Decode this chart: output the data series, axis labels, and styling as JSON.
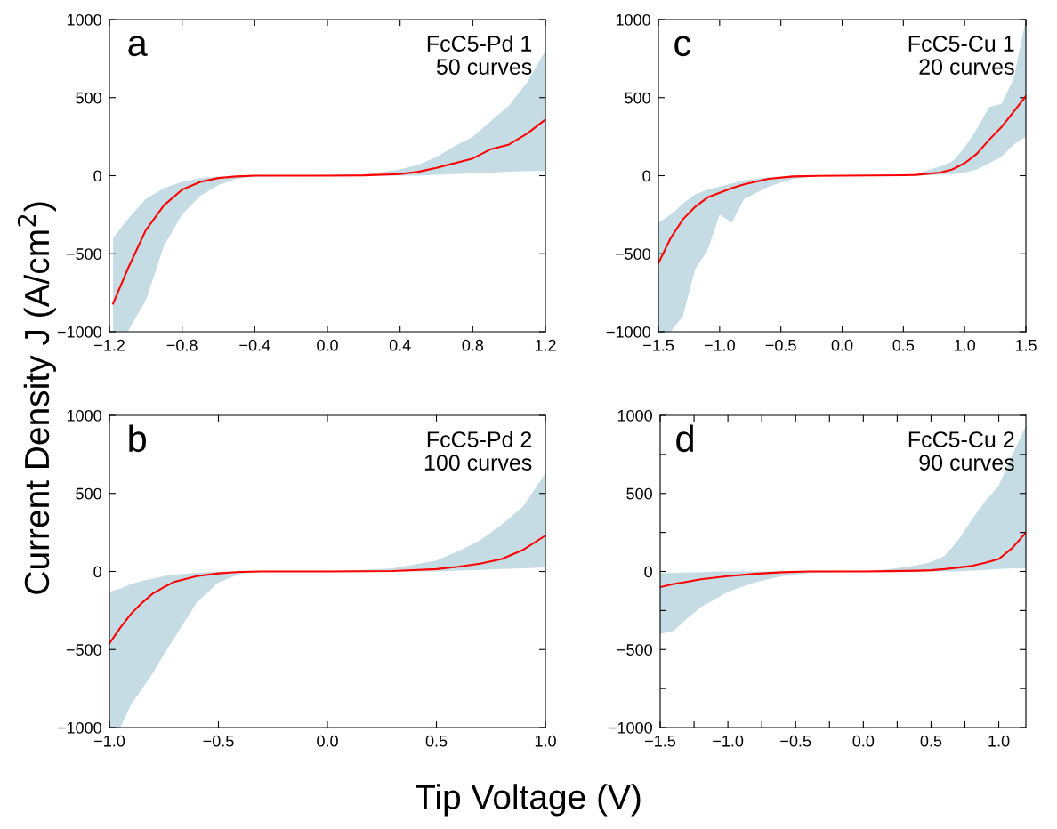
{
  "chart_data": [
    {
      "type": "line",
      "ylabel": "Current Density J (A/cm$^{2}$)",
      "xlabel": "Tip Voltage (V)",
      "annotations": [
        "a",
        "FcC5-Pd 1\n50 curves"
      ],
      "xlim": [
        -1.2,
        1.2
      ],
      "ylim": [
        -1000,
        1000
      ],
      "xticks": [
        {
          "value": -1.2,
          "label": "−1.2"
        },
        {
          "value": -0.8,
          "label": "−0.8"
        },
        {
          "value": -0.4,
          "label": "−0.4"
        },
        {
          "value": 0,
          "label": "0.0"
        },
        {
          "value": 0.4,
          "label": "0.4"
        },
        {
          "value": 0.8,
          "label": "0.8"
        },
        {
          "value": 1.2,
          "label": "1.2"
        }
      ],
      "yticks": [
        {
          "value": -1000,
          "label": "−1000"
        },
        {
          "value": -500,
          "label": "−500"
        },
        0,
        500,
        1000
      ],
      "series": [
        {
          "color": "#ff0000",
          "x": [
            -1.18,
            -1.1,
            -1.0,
            -0.9,
            -0.8,
            -0.7,
            -0.6,
            -0.5,
            -0.4,
            0,
            0.2,
            0.4,
            0.5,
            0.6,
            0.7,
            0.8,
            0.9,
            1.0,
            1.1,
            1.2
          ],
          "values": [
            -820,
            -600,
            -350,
            -190,
            -90,
            -40,
            -15,
            -5,
            0,
            0,
            2,
            10,
            25,
            50,
            80,
            110,
            170,
            200,
            270,
            360
          ],
          "lower": [
            -1000,
            -1000,
            -800,
            -450,
            -250,
            -130,
            -60,
            -20,
            -5,
            0,
            0,
            0,
            0,
            5,
            10,
            15,
            20,
            25,
            30,
            30
          ],
          "upper": [
            -400,
            -280,
            -150,
            -80,
            -40,
            -15,
            -5,
            0,
            0,
            0,
            5,
            40,
            70,
            120,
            190,
            250,
            350,
            450,
            600,
            800
          ]
        }
      ]
    },
    {
      "type": "line",
      "annotations": [
        "c",
        "FcC5-Cu 1\n20 curves"
      ],
      "xlim": [
        -1.5,
        1.5
      ],
      "ylim": [
        -1000,
        1000
      ],
      "xticks": [
        {
          "value": -1.5,
          "label": "−1.5"
        },
        {
          "value": -1.0,
          "label": "−1.0"
        },
        {
          "value": -0.5,
          "label": "−0.5"
        },
        {
          "value": 0,
          "label": "0.0"
        },
        {
          "value": 0.5,
          "label": "0.5"
        },
        {
          "value": 1.0,
          "label": "1.0"
        },
        {
          "value": 1.5,
          "label": "1.5"
        }
      ],
      "yticks": [
        {
          "value": -1000,
          "label": "−1000"
        },
        {
          "value": -500,
          "label": "−500"
        },
        0,
        500,
        1000
      ],
      "series": [
        {
          "color": "#ff0000",
          "x": [
            -1.5,
            -1.4,
            -1.3,
            -1.2,
            -1.1,
            -1.0,
            -0.9,
            -0.8,
            -0.6,
            -0.4,
            -0.2,
            0,
            0.5,
            0.6,
            0.8,
            0.9,
            1.0,
            1.1,
            1.2,
            1.3,
            1.4,
            1.5
          ],
          "values": [
            -560,
            -400,
            -280,
            -200,
            -140,
            -110,
            -80,
            -55,
            -20,
            -5,
            -1,
            0,
            3,
            5,
            20,
            40,
            80,
            140,
            230,
            310,
            410,
            510
          ],
          "lower": [
            -1000,
            -1000,
            -900,
            -600,
            -480,
            -250,
            -300,
            -150,
            -70,
            -20,
            -3,
            0,
            0,
            0,
            5,
            10,
            20,
            40,
            80,
            120,
            200,
            250
          ],
          "upper": [
            -300,
            -250,
            -180,
            -120,
            -90,
            -70,
            -50,
            -30,
            -10,
            0,
            0,
            0,
            5,
            10,
            60,
            90,
            180,
            300,
            440,
            460,
            620,
            1000
          ]
        }
      ]
    },
    {
      "type": "line",
      "annotations": [
        "b",
        "FcC5-Pd 2\n100 curves"
      ],
      "xlim": [
        -1.0,
        1.0
      ],
      "ylim": [
        -1000,
        1000
      ],
      "xticks": [
        {
          "value": -1.0,
          "label": "−1.0"
        },
        {
          "value": -0.5,
          "label": "−0.5"
        },
        {
          "value": 0,
          "label": "0.0"
        },
        {
          "value": 0.5,
          "label": "0.5"
        },
        {
          "value": 1.0,
          "label": "1.0"
        }
      ],
      "yticks": [
        {
          "value": -1000,
          "label": "−1000"
        },
        {
          "value": -500,
          "label": "−500"
        },
        0,
        500,
        1000
      ],
      "series": [
        {
          "color": "#ff0000",
          "x": [
            -1.0,
            -0.95,
            -0.9,
            -0.85,
            -0.8,
            -0.75,
            -0.7,
            -0.6,
            -0.5,
            -0.4,
            -0.3,
            0,
            0.3,
            0.5,
            0.6,
            0.7,
            0.8,
            0.9,
            1.0
          ],
          "values": [
            -460,
            -360,
            -270,
            -200,
            -140,
            -100,
            -65,
            -30,
            -12,
            -3,
            0,
            0,
            3,
            15,
            30,
            50,
            80,
            140,
            230
          ],
          "lower": [
            -1000,
            -1000,
            -850,
            -750,
            -650,
            -530,
            -420,
            -200,
            -70,
            -15,
            -2,
            0,
            0,
            0,
            5,
            10,
            15,
            20,
            25
          ],
          "upper": [
            -130,
            -110,
            -80,
            -60,
            -45,
            -30,
            -20,
            -8,
            0,
            0,
            0,
            0,
            20,
            70,
            130,
            200,
            300,
            420,
            630
          ]
        }
      ]
    },
    {
      "type": "line",
      "annotations": [
        "d",
        "FcC5-Cu 2\n90 curves"
      ],
      "xlim": [
        -1.5,
        1.2
      ],
      "ylim": [
        -1000,
        1000
      ],
      "xticks": [
        {
          "value": -1.5,
          "label": "−1.5"
        },
        {
          "value": -1.25,
          "label": null
        },
        {
          "value": -1.0,
          "label": "−1.0"
        },
        {
          "value": -0.75,
          "label": null
        },
        {
          "value": -0.5,
          "label": "−0.5"
        },
        {
          "value": -0.25,
          "label": null
        },
        {
          "value": 0,
          "label": "0.0"
        },
        {
          "value": 0.25,
          "label": null
        },
        {
          "value": 0.5,
          "label": "0.5"
        },
        {
          "value": 0.75,
          "label": null
        },
        {
          "value": 1.0,
          "label": "1.0"
        }
      ],
      "yticks": [
        {
          "value": -1000,
          "label": "−1000"
        },
        {
          "value": -750,
          "label": null
        },
        {
          "value": -500,
          "label": "−500"
        },
        {
          "value": -250,
          "label": null
        },
        0,
        {
          "value": 250,
          "label": null
        },
        500,
        {
          "value": 750,
          "label": null
        },
        1000
      ],
      "series": [
        {
          "color": "#ff0000",
          "x": [
            -1.5,
            -1.4,
            -1.3,
            -1.2,
            -1.1,
            -1.0,
            -0.8,
            -0.6,
            -0.4,
            0,
            0.2,
            0.4,
            0.5,
            0.6,
            0.7,
            0.8,
            0.9,
            1.0,
            1.1,
            1.2
          ],
          "values": [
            -100,
            -80,
            -65,
            -50,
            -40,
            -30,
            -15,
            -5,
            0,
            0,
            2,
            5,
            8,
            15,
            25,
            35,
            55,
            80,
            150,
            250
          ],
          "lower": [
            -400,
            -380,
            -300,
            -230,
            -180,
            -130,
            -70,
            -30,
            -10,
            0,
            0,
            0,
            0,
            0,
            0,
            5,
            10,
            15,
            20,
            20
          ],
          "upper": [
            -10,
            -10,
            -5,
            -5,
            0,
            0,
            0,
            0,
            0,
            0,
            15,
            40,
            60,
            100,
            200,
            330,
            450,
            550,
            750,
            930
          ]
        }
      ]
    }
  ]
}
